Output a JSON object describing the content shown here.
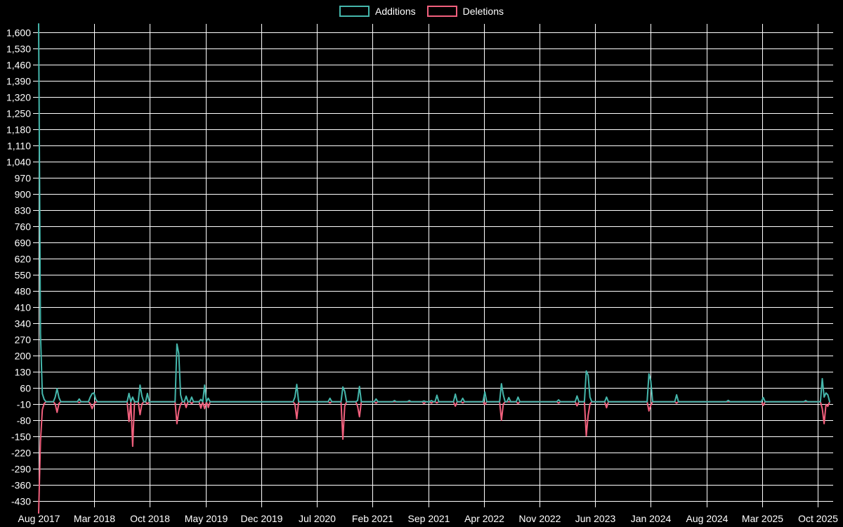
{
  "page": {
    "background_color": "#000000",
    "grid_color": "#ffffff",
    "text_color": "#ffffff"
  },
  "legend": {
    "position": "top-center",
    "items": [
      {
        "label": "Additions",
        "color": "#45b6ab"
      },
      {
        "label": "Deletions",
        "color": "#f1607d"
      }
    ]
  },
  "chart_data": {
    "type": "line",
    "title": "",
    "xlabel": "",
    "ylabel": "",
    "grid": true,
    "legend_position": "top-center",
    "x_unit": "week",
    "x_range_description": "weekly data points from Aug 2017 to Oct 2025",
    "n_points": 430,
    "baseline_value": 0,
    "x_tick_labels": [
      "Aug 2017",
      "Mar 2018",
      "Oct 2018",
      "May 2019",
      "Dec 2019",
      "Jul 2020",
      "Feb 2021",
      "Sep 2021",
      "Apr 2022",
      "Nov 2022",
      "Jun 2023",
      "Jan 2024",
      "Aug 2024",
      "Mar 2025",
      "Oct 2025"
    ],
    "x_tick_interval_months": 7,
    "ylim": [
      -430,
      1600
    ],
    "y_ticks": [
      -430,
      -360,
      -290,
      -220,
      -150,
      -80,
      -10,
      60,
      130,
      200,
      270,
      340,
      410,
      480,
      550,
      620,
      690,
      760,
      830,
      900,
      970,
      1040,
      1110,
      1180,
      1250,
      1320,
      1390,
      1460,
      1530,
      1600
    ],
    "y_tick_labels": [
      "-430",
      "-360",
      "-290",
      "-220",
      "-150",
      "-80",
      "-10",
      "60",
      "130",
      "200",
      "270",
      "340",
      "410",
      "480",
      "550",
      "620",
      "690",
      "760",
      "830",
      "900",
      "970",
      "1,040",
      "1,110",
      "1,180",
      "1,250",
      "1,320",
      "1,390",
      "1,460",
      "1,530",
      "1,600"
    ],
    "series": [
      {
        "name": "Additions",
        "color": "#45b6ab",
        "note": "value 0 for all weeks except spikes; spikes are [week_index, value]; week 0 peak is clipped at top of plot",
        "spikes": [
          [
            0,
            1640
          ],
          [
            1,
            294
          ],
          [
            2,
            35
          ],
          [
            3,
            10
          ],
          [
            9,
            20
          ],
          [
            10,
            57
          ],
          [
            11,
            18
          ],
          [
            22,
            12
          ],
          [
            28,
            20
          ],
          [
            29,
            35
          ],
          [
            30,
            38
          ],
          [
            31,
            10
          ],
          [
            49,
            36
          ],
          [
            51,
            20
          ],
          [
            55,
            72
          ],
          [
            56,
            25
          ],
          [
            59,
            36
          ],
          [
            75,
            250
          ],
          [
            76,
            208
          ],
          [
            77,
            30
          ],
          [
            80,
            24
          ],
          [
            83,
            20
          ],
          [
            88,
            10
          ],
          [
            90,
            72
          ],
          [
            92,
            15
          ],
          [
            139,
            20
          ],
          [
            140,
            75
          ],
          [
            158,
            15
          ],
          [
            165,
            64
          ],
          [
            166,
            45
          ],
          [
            173,
            5
          ],
          [
            174,
            66
          ],
          [
            183,
            12
          ],
          [
            193,
            5
          ],
          [
            201,
            5
          ],
          [
            209,
            3
          ],
          [
            213,
            5
          ],
          [
            216,
            28
          ],
          [
            226,
            33
          ],
          [
            230,
            15
          ],
          [
            242,
            42
          ],
          [
            251,
            78
          ],
          [
            252,
            30
          ],
          [
            255,
            18
          ],
          [
            260,
            20
          ],
          [
            282,
            8
          ],
          [
            292,
            25
          ],
          [
            297,
            133
          ],
          [
            298,
            115
          ],
          [
            299,
            20
          ],
          [
            308,
            20
          ],
          [
            331,
            121
          ],
          [
            332,
            90
          ],
          [
            346,
            30
          ],
          [
            374,
            6
          ],
          [
            393,
            18
          ],
          [
            416,
            5
          ],
          [
            425,
            100
          ],
          [
            426,
            20
          ],
          [
            427,
            38
          ],
          [
            428,
            30
          ]
        ]
      },
      {
        "name": "Deletions",
        "color": "#f1607d",
        "note": "value 0 for all weeks except spikes; spikes are [week_index, value]",
        "spikes": [
          [
            0,
            -482
          ],
          [
            1,
            -171
          ],
          [
            2,
            -35
          ],
          [
            3,
            -8
          ],
          [
            9,
            -10
          ],
          [
            10,
            -46
          ],
          [
            11,
            -8
          ],
          [
            22,
            -4
          ],
          [
            28,
            -8
          ],
          [
            29,
            -30
          ],
          [
            30,
            -10
          ],
          [
            49,
            -86
          ],
          [
            51,
            -193
          ],
          [
            55,
            -56
          ],
          [
            56,
            -10
          ],
          [
            59,
            -10
          ],
          [
            75,
            -95
          ],
          [
            76,
            -40
          ],
          [
            77,
            -10
          ],
          [
            80,
            -25
          ],
          [
            83,
            -8
          ],
          [
            88,
            -28
          ],
          [
            90,
            -30
          ],
          [
            92,
            -25
          ],
          [
            139,
            -10
          ],
          [
            140,
            -74
          ],
          [
            158,
            -5
          ],
          [
            165,
            -162
          ],
          [
            166,
            -20
          ],
          [
            173,
            -20
          ],
          [
            174,
            -65
          ],
          [
            183,
            -6
          ],
          [
            209,
            -8
          ],
          [
            213,
            -6
          ],
          [
            216,
            -5
          ],
          [
            226,
            -19
          ],
          [
            230,
            -5
          ],
          [
            242,
            -12
          ],
          [
            251,
            -80
          ],
          [
            252,
            -10
          ],
          [
            260,
            -8
          ],
          [
            282,
            -6
          ],
          [
            292,
            -18
          ],
          [
            297,
            -148
          ],
          [
            298,
            -60
          ],
          [
            299,
            -10
          ],
          [
            308,
            -26
          ],
          [
            331,
            -40
          ],
          [
            332,
            -15
          ],
          [
            346,
            -6
          ],
          [
            393,
            -16
          ],
          [
            425,
            -30
          ],
          [
            426,
            -95
          ],
          [
            427,
            -12
          ],
          [
            428,
            -20
          ]
        ]
      }
    ]
  }
}
